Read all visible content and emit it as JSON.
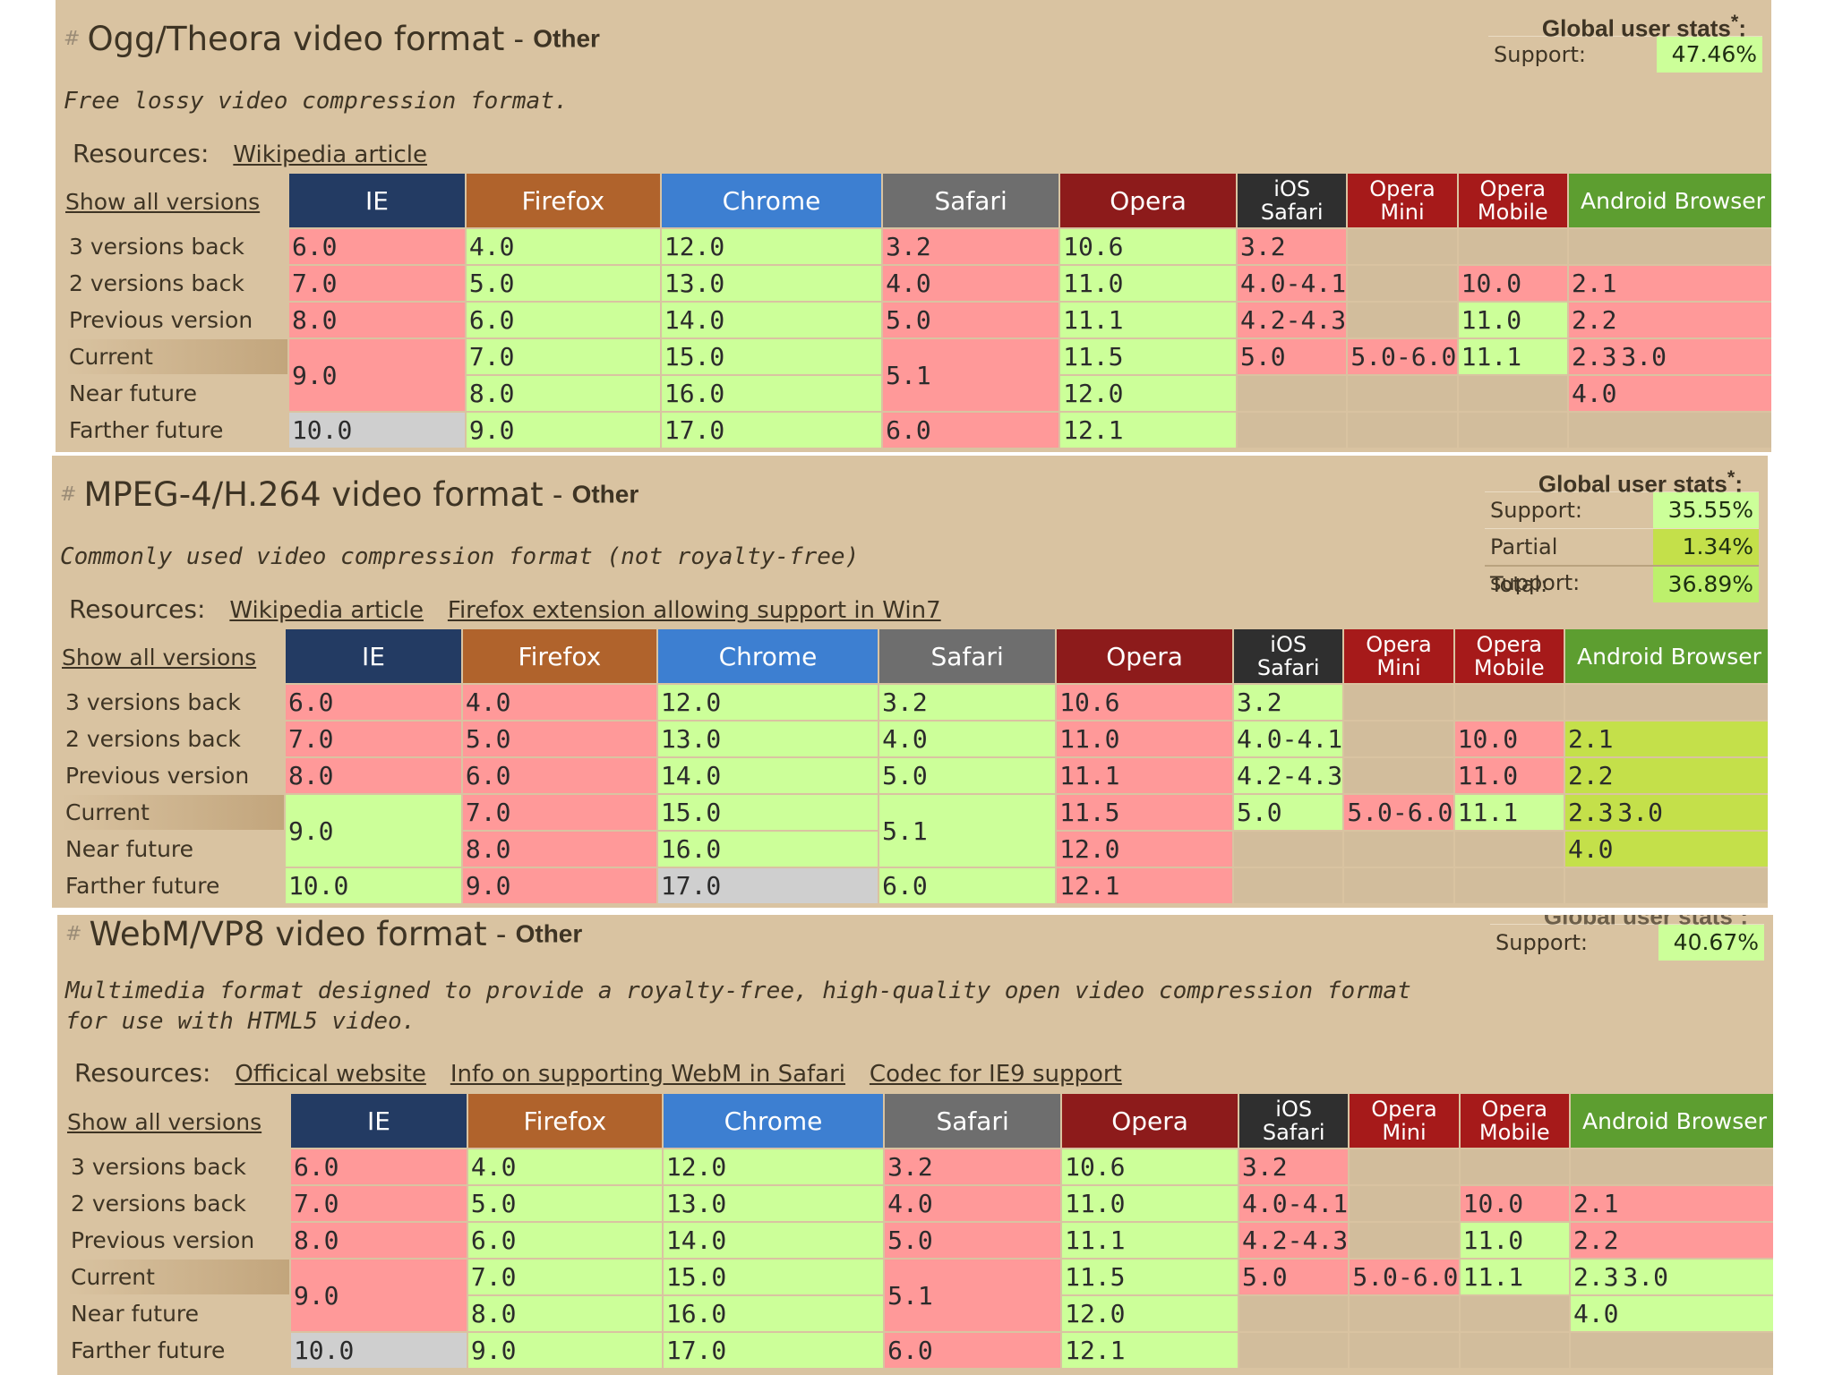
{
  "common": {
    "show_all": "Show all versions",
    "row_labels": [
      "3 versions back",
      "2 versions back",
      "Previous version",
      "Current",
      "Near future",
      "Farther future"
    ],
    "browsers": [
      "IE",
      "Firefox",
      "Chrome",
      "Safari",
      "Opera",
      "iOS Safari",
      "Opera Mini",
      "Opera Mobile",
      "Android Browser"
    ],
    "browser_colors": [
      "#233b63",
      "#b0632c",
      "#3d7fd1",
      "#6e6e6e",
      "#8d1b1b",
      "#2f2f2f",
      "#a61a1a",
      "#a61a1a",
      "#5d9e30"
    ],
    "status_colors": {
      "y": "#ccff99",
      "n": "#ff9999",
      "p": "#c4e04a",
      "u": "#cfcfcf"
    }
  },
  "features": [
    {
      "hash": "#",
      "title": "Ogg/Theora video format",
      "dash": " - ",
      "category": "Other",
      "description": "Free lossy video compression format.",
      "resources_label": "Resources:",
      "links": [
        "Wikipedia article"
      ],
      "stats_title": "Global user stats",
      "stats_star": "*",
      "stats_colon": ":",
      "stats": [
        {
          "label": "Support:",
          "value": "47.46%"
        }
      ],
      "grid": {
        "ie": {
          "v3": "6.0",
          "v2": "7.0",
          "prev": "8.0",
          "cur": "9.0",
          "far": "10.0",
          "s": "nnnnu"
        },
        "firefox": [
          "4.0",
          "5.0",
          "6.0",
          "7.0",
          "8.0",
          "9.0"
        ],
        "chrome": [
          "12.0",
          "13.0",
          "14.0",
          "15.0",
          "16.0",
          "17.0"
        ],
        "safari": {
          "v3": "3.2",
          "v2": "4.0",
          "prev": "5.0",
          "cur": "5.1",
          "far": "6.0"
        },
        "opera": [
          "10.6",
          "11.0",
          "11.1",
          "11.5",
          "12.0",
          "12.1"
        ],
        "ios": [
          "3.2",
          "4.0-4.1",
          "4.2-4.3",
          "5.0"
        ],
        "opmini": "5.0-6.0",
        "opmob": [
          "10.0",
          "11.0",
          "11.1"
        ],
        "android": {
          "v2": "2.1",
          "prev": "2.2",
          "cur_a": "2.3",
          "cur_b": "3.0",
          "near": "4.0"
        }
      }
    },
    {
      "hash": "#",
      "title": "MPEG-4/H.264 video format",
      "dash": " - ",
      "category": "Other",
      "description": "Commonly used video compression format (not royalty-free)",
      "resources_label": "Resources:",
      "links": [
        "Wikipedia article",
        "Firefox extension allowing support in Win7"
      ],
      "stats_title": "Global user stats",
      "stats_star": "*",
      "stats_colon": ":",
      "stats": [
        {
          "label": "Support:",
          "value": "35.55%"
        },
        {
          "label": "Partial support:",
          "value": "1.34%"
        },
        {
          "label": "Total:",
          "value": "36.89%"
        }
      ],
      "grid": {
        "ie": {
          "v3": "6.0",
          "v2": "7.0",
          "prev": "8.0",
          "cur": "9.0",
          "far": "10.0"
        },
        "firefox": [
          "4.0",
          "5.0",
          "6.0",
          "7.0",
          "8.0",
          "9.0"
        ],
        "chrome": [
          "12.0",
          "13.0",
          "14.0",
          "15.0",
          "16.0",
          "17.0"
        ],
        "safari": {
          "v3": "3.2",
          "v2": "4.0",
          "prev": "5.0",
          "cur": "5.1",
          "far": "6.0"
        },
        "opera": [
          "10.6",
          "11.0",
          "11.1",
          "11.5",
          "12.0",
          "12.1"
        ],
        "ios": [
          "3.2",
          "4.0-4.1",
          "4.2-4.3",
          "5.0"
        ],
        "opmini": "5.0-6.0",
        "opmob": [
          "10.0",
          "11.0",
          "11.1"
        ],
        "android": {
          "v2": "2.1",
          "prev": "2.2",
          "cur_a": "2.3",
          "cur_b": "3.0",
          "near": "4.0"
        }
      }
    },
    {
      "hash": "#",
      "title": "WebM/VP8 video format",
      "dash": " - ",
      "category": "Other",
      "description": "Multimedia format designed to provide a royalty-free, high-quality open video compression format for use with HTML5 video.",
      "resources_label": "Resources:",
      "links": [
        "Officical website",
        "Info on supporting WebM in Safari",
        "Codec for IE9 support"
      ],
      "stats_title": "Global user stats",
      "stats_star": "*",
      "stats_colon": ":",
      "stats": [
        {
          "label": "Support:",
          "value": "40.67%"
        }
      ],
      "grid": {
        "ie": {
          "v3": "6.0",
          "v2": "7.0",
          "prev": "8.0",
          "cur": "9.0",
          "far": "10.0"
        },
        "firefox": [
          "4.0",
          "5.0",
          "6.0",
          "7.0",
          "8.0",
          "9.0"
        ],
        "chrome": [
          "12.0",
          "13.0",
          "14.0",
          "15.0",
          "16.0",
          "17.0"
        ],
        "safari": {
          "v3": "3.2",
          "v2": "4.0",
          "prev": "5.0",
          "cur": "5.1",
          "far": "6.0"
        },
        "opera": [
          "10.6",
          "11.0",
          "11.1",
          "11.5",
          "12.0",
          "12.1"
        ],
        "ios": [
          "3.2",
          "4.0-4.1",
          "4.2-4.3",
          "5.0"
        ],
        "opmini": "5.0-6.0",
        "opmob": [
          "10.0",
          "11.0",
          "11.1"
        ],
        "android": {
          "v2": "2.1",
          "prev": "2.2",
          "cur_a": "2.3",
          "cur_b": "3.0",
          "near": "4.0"
        }
      }
    }
  ]
}
